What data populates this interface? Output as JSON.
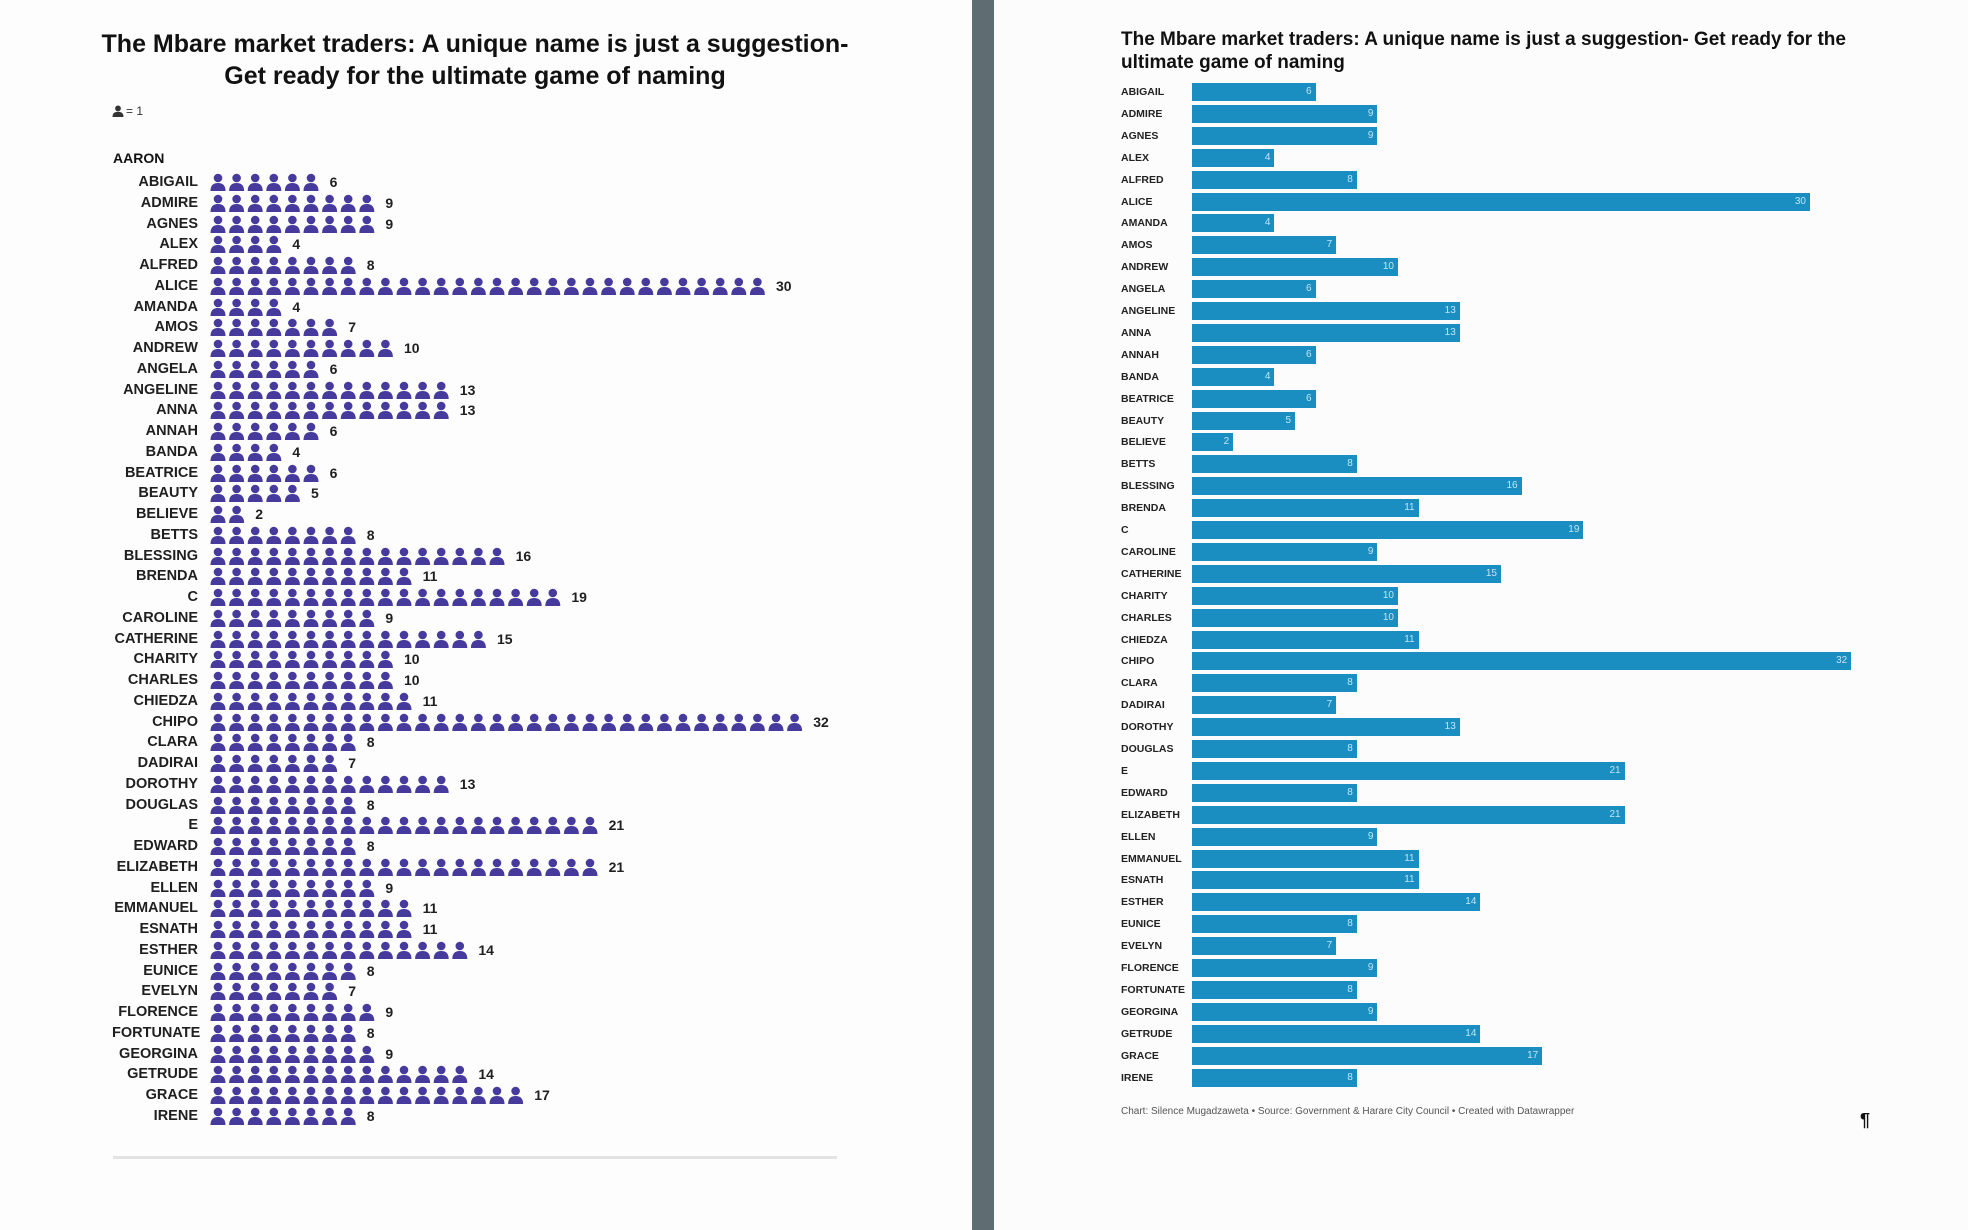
{
  "chart_data": [
    {
      "type": "bar",
      "style": "pictogram",
      "title": "The Mbare market traders: A unique name is just a suggestion- Get ready for the ultimate game of naming",
      "legend": "= 1",
      "extra_label": "AARON",
      "color": "#463a9c",
      "categories": [
        "ABIGAIL",
        "ADMIRE",
        "AGNES",
        "ALEX",
        "ALFRED",
        "ALICE",
        "AMANDA",
        "AMOS",
        "ANDREW",
        "ANGELA",
        "ANGELINE",
        "ANNA",
        "ANNAH",
        "BANDA",
        "BEATRICE",
        "BEAUTY",
        "BELIEVE",
        "BETTS",
        "BLESSING",
        "BRENDA",
        "C",
        "CAROLINE",
        "CATHERINE",
        "CHARITY",
        "CHARLES",
        "CHIEDZA",
        "CHIPO",
        "CLARA",
        "DADIRAI",
        "DOROTHY",
        "DOUGLAS",
        "E",
        "EDWARD",
        "ELIZABETH",
        "ELLEN",
        "EMMANUEL",
        "ESNATH",
        "ESTHER",
        "EUNICE",
        "EVELYN",
        "FLORENCE",
        "FORTUNATE",
        "GEORGINA",
        "GETRUDE",
        "GRACE",
        "IRENE"
      ],
      "values": [
        6,
        9,
        9,
        4,
        8,
        30,
        4,
        7,
        10,
        6,
        13,
        13,
        6,
        4,
        6,
        5,
        2,
        8,
        16,
        11,
        19,
        9,
        15,
        10,
        10,
        11,
        32,
        8,
        7,
        13,
        8,
        21,
        8,
        21,
        9,
        11,
        11,
        14,
        8,
        7,
        9,
        8,
        9,
        14,
        17,
        8
      ]
    },
    {
      "type": "bar",
      "orientation": "horizontal",
      "title": "The Mbare market traders: A unique name is just a suggestion- Get ready for the ultimate game of naming",
      "color": "#1a8ec0",
      "categories": [
        "ABIGAIL",
        "ADMIRE",
        "AGNES",
        "ALEX",
        "ALFRED",
        "ALICE",
        "AMANDA",
        "AMOS",
        "ANDREW",
        "ANGELA",
        "ANGELINE",
        "ANNA",
        "ANNAH",
        "BANDA",
        "BEATRICE",
        "BEAUTY",
        "BELIEVE",
        "BETTS",
        "BLESSING",
        "BRENDA",
        "C",
        "CAROLINE",
        "CATHERINE",
        "CHARITY",
        "CHARLES",
        "CHIEDZA",
        "CHIPO",
        "CLARA",
        "DADIRAI",
        "DOROTHY",
        "DOUGLAS",
        "E",
        "EDWARD",
        "ELIZABETH",
        "ELLEN",
        "EMMANUEL",
        "ESNATH",
        "ESTHER",
        "EUNICE",
        "EVELYN",
        "FLORENCE",
        "FORTUNATE",
        "GEORGINA",
        "GETRUDE",
        "GRACE",
        "IRENE"
      ],
      "values": [
        6,
        9,
        9,
        4,
        8,
        30,
        4,
        7,
        10,
        6,
        13,
        13,
        6,
        4,
        6,
        5,
        2,
        8,
        16,
        11,
        19,
        9,
        15,
        10,
        10,
        11,
        32,
        8,
        7,
        13,
        8,
        21,
        8,
        21,
        9,
        11,
        11,
        14,
        8,
        7,
        9,
        8,
        9,
        14,
        17,
        8
      ],
      "footer": "Chart: Silence Mugadzaweta • Source: Government & Harare City Council • Created with Datawrapper",
      "pilcrow": "¶"
    }
  ]
}
